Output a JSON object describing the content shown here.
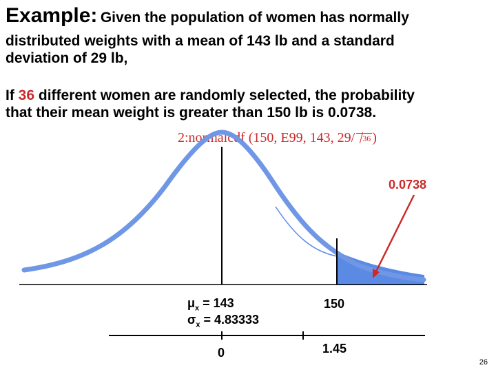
{
  "title": {
    "lead": "Example:",
    "rest": "Given the population of women has normally"
  },
  "intro": {
    "line1": "distributed weights with a mean of 143 lb and a standard",
    "line2": "deviation of 29 lb,"
  },
  "statement": {
    "line1_pre": "If ",
    "line1_num": "36",
    "line1_post": " different women are randomly selected, the probability",
    "line2": "that their mean weight is greater than 150 lb is 0.0738."
  },
  "calculator": {
    "expr": "2:normalcdf (150, E99, 143, 29/",
    "radicand": "36",
    "close": ")"
  },
  "graph": {
    "probability_label": "0.0738",
    "mu_symbol": "μ",
    "sigma_symbol": "σ",
    "x_sub": "x",
    "mu_value": " = 143",
    "sigma_value": " = 4.83333",
    "mean_x_label": "150",
    "z_left": "0",
    "z_right": "1.45"
  },
  "colors": {
    "accent": "#cc2a2a",
    "curve": "#6f97e6",
    "shade": "#5b8ae4"
  },
  "page_number": "26"
}
